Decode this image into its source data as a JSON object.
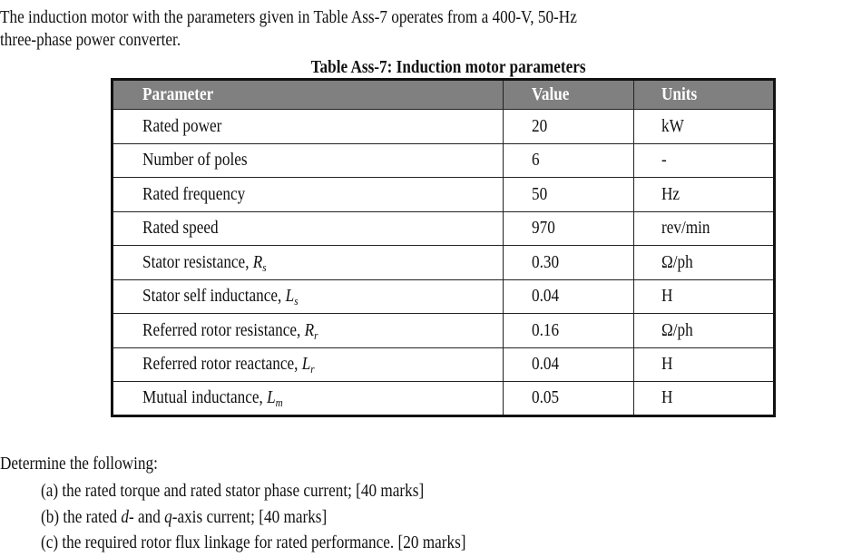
{
  "intro": {
    "line1": "The induction motor with the parameters given in Table Ass-7 operates from  a  400-V, 50-Hz",
    "line2": "three-phase power converter."
  },
  "table": {
    "caption": "Table Ass-7: Induction motor parameters",
    "headers": [
      "Parameter",
      "Value",
      "Units"
    ],
    "header_color": "#808080",
    "rows": [
      {
        "name": "Rated power",
        "symbol": "",
        "sub": "",
        "value": "20",
        "units": "kW"
      },
      {
        "name": "Number of poles",
        "symbol": "",
        "sub": "",
        "value": "6",
        "units": "-"
      },
      {
        "name": "Rated frequency",
        "symbol": "",
        "sub": "",
        "value": "50",
        "units": "Hz"
      },
      {
        "name": "Rated speed",
        "symbol": "",
        "sub": "",
        "value": "970",
        "units": "rev/min"
      },
      {
        "name": "Stator resistance, ",
        "symbol": "R",
        "sub": "s",
        "value": "0.30",
        "units": "Ω/ph"
      },
      {
        "name": "Stator self inductance, ",
        "symbol": "L",
        "sub": "s",
        "value": "0.04",
        "units": "H"
      },
      {
        "name": "Referred rotor resistance, ",
        "symbol": "R",
        "sub": "r",
        "value": "0.16",
        "units": "Ω/ph"
      },
      {
        "name": "Referred rotor reactance, ",
        "symbol": "L",
        "sub": "r",
        "value": "0.04",
        "units": "H"
      },
      {
        "name": "Mutual inductance, ",
        "symbol": "L",
        "sub": "m",
        "value": "0.05",
        "units": "H"
      }
    ]
  },
  "questions": {
    "prompt": "Determine the following:",
    "items": [
      {
        "parts": [
          "(a)  the rated torque and rated stator phase current; [40 marks]"
        ]
      },
      {
        "parts": [
          "(b)  the rated ",
          "d",
          "- and ",
          "q",
          "-axis current; [40 marks]"
        ]
      },
      {
        "parts": [
          "(c)  the required rotor flux linkage for rated performance. [20 marks]"
        ]
      }
    ]
  }
}
